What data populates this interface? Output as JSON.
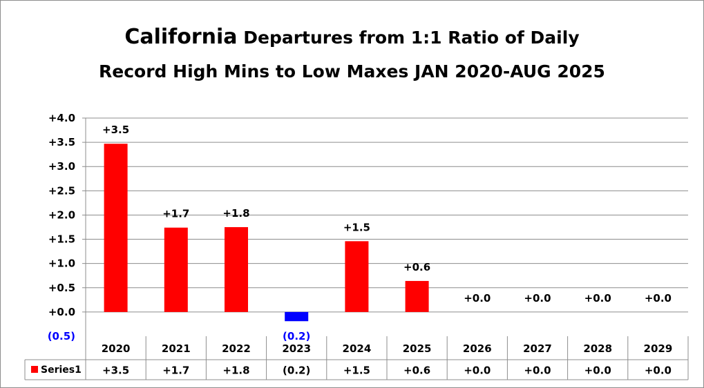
{
  "title": {
    "line1_big": "California",
    "line1_rest": " Departures from 1:1 Ratio of Daily",
    "line2": "Record High Mins to Low Maxes JAN 2020-AUG 2025"
  },
  "colors": {
    "positive": "#ff0000",
    "negative": "#0000ff",
    "grid": "#8c8c8c"
  },
  "chart_data": {
    "type": "bar",
    "categories": [
      "2020",
      "2021",
      "2022",
      "2023",
      "2024",
      "2025",
      "2026",
      "2027",
      "2028",
      "2029"
    ],
    "series": [
      {
        "name": "Series1",
        "values": [
          3.47,
          1.74,
          1.75,
          -0.19,
          1.46,
          0.64,
          0.0,
          0.0,
          0.0,
          0.0
        ],
        "labels": [
          "+3.5",
          "+1.7",
          "+1.8",
          "(0.2)",
          "+1.5",
          "+0.6",
          "+0.0",
          "+0.0",
          "+0.0",
          "+0.0"
        ]
      }
    ],
    "ylim": [
      -0.5,
      4.0
    ],
    "yticks": [
      -0.5,
      0.0,
      0.5,
      1.0,
      1.5,
      2.0,
      2.5,
      3.0,
      3.5,
      4.0
    ],
    "ytick_labels": [
      "(0.5)",
      "+0.0",
      "+0.5",
      "+1.0",
      "+1.5",
      "+2.0",
      "+2.5",
      "+3.0",
      "+3.5",
      "+4.0"
    ],
    "grid": true,
    "data_table": true,
    "legend": "data-table"
  }
}
